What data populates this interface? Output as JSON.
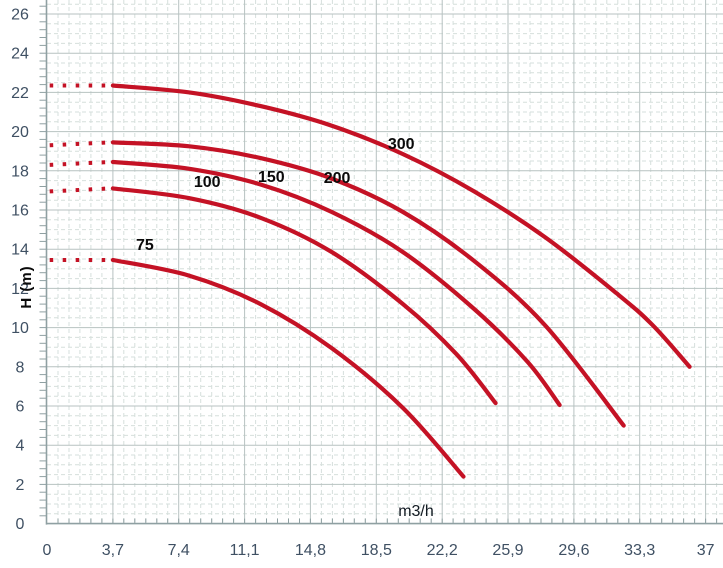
{
  "chart_data": {
    "type": "line",
    "title": "",
    "xlabel": "m3/h",
    "ylabel": "H (m)",
    "xlim": [
      0,
      38.0
    ],
    "ylim": [
      0,
      26.6
    ],
    "grid": {
      "visible": true,
      "x_minor_per_major": 6,
      "y_minor_step": 0.5,
      "y_axis_tick_step": 0.4,
      "x_major_step": 3.7,
      "y_major_step": 2
    },
    "x_ticks": [
      0,
      3.7,
      7.4,
      11.1,
      14.8,
      18.5,
      22.2,
      25.9,
      29.6,
      33.3,
      37
    ],
    "x_tick_labels": [
      "0",
      "3,7",
      "7,4",
      "11,1",
      "14,8",
      "18,5",
      "22,2",
      "25,9",
      "29,6",
      "33,3",
      "37"
    ],
    "y_ticks": [
      0,
      2,
      4,
      6,
      8,
      10,
      12,
      14,
      16,
      18,
      20,
      22,
      24,
      26
    ],
    "y_tick_labels": [
      "0",
      "2",
      "4",
      "6",
      "8",
      "10",
      "12",
      "14",
      "16",
      "18",
      "20",
      "22",
      "24",
      "26"
    ],
    "colors": {
      "curve": "#c41225",
      "grid_major": "#b7c2c1",
      "grid_minor": "#d6dfdc",
      "axis": "#8fa0a2",
      "tick_label": "#3f5063",
      "curve_label": "#0a0a0a"
    },
    "series": [
      {
        "name": "75",
        "label": {
          "x": 5.5,
          "h": 14.25
        },
        "lead": {
          "x0": 0.15,
          "x1": 3.55,
          "h": 13.45
        },
        "points": [
          [
            3.7,
            13.45
          ],
          [
            8,
            12.65
          ],
          [
            12,
            11.2
          ],
          [
            16,
            8.95
          ],
          [
            20,
            5.9
          ],
          [
            23.4,
            2.4
          ]
        ]
      },
      {
        "name": "100",
        "label": {
          "x": 9.0,
          "h": 17.45
        },
        "lead": {
          "x0": 0.15,
          "x1": 3.55,
          "h": 16.95
        },
        "points": [
          [
            3.7,
            17.1
          ],
          [
            8,
            16.6
          ],
          [
            12,
            15.6
          ],
          [
            16,
            13.85
          ],
          [
            20,
            11.2
          ],
          [
            23,
            8.65
          ],
          [
            25.2,
            6.15
          ]
        ]
      },
      {
        "name": "150",
        "label": {
          "x": 12.6,
          "h": 17.7
        },
        "lead": {
          "x0": 0.15,
          "x1": 3.55,
          "h": 18.3
        },
        "points": [
          [
            3.7,
            18.45
          ],
          [
            8,
            18.1
          ],
          [
            12,
            17.3
          ],
          [
            16,
            15.9
          ],
          [
            20,
            13.85
          ],
          [
            24,
            10.95
          ],
          [
            27,
            8.25
          ],
          [
            28.8,
            6.05
          ]
        ]
      },
      {
        "name": "200",
        "label": {
          "x": 16.3,
          "h": 17.65
        },
        "lead": {
          "x0": 0.15,
          "x1": 3.55,
          "h": 19.3
        },
        "points": [
          [
            3.7,
            19.45
          ],
          [
            8,
            19.25
          ],
          [
            12,
            18.65
          ],
          [
            16,
            17.6
          ],
          [
            20,
            15.9
          ],
          [
            24,
            13.4
          ],
          [
            28,
            10.1
          ],
          [
            32.4,
            5.0
          ]
        ]
      },
      {
        "name": "300",
        "label": {
          "x": 19.9,
          "h": 19.4
        },
        "lead": {
          "x0": 0.15,
          "x1": 3.55,
          "h": 22.35
        },
        "points": [
          [
            3.7,
            22.35
          ],
          [
            8,
            22.0
          ],
          [
            12,
            21.3
          ],
          [
            16,
            20.3
          ],
          [
            20,
            18.85
          ],
          [
            24,
            16.95
          ],
          [
            28,
            14.6
          ],
          [
            32,
            11.75
          ],
          [
            34,
            10.15
          ],
          [
            36.1,
            8.0
          ]
        ]
      }
    ]
  }
}
